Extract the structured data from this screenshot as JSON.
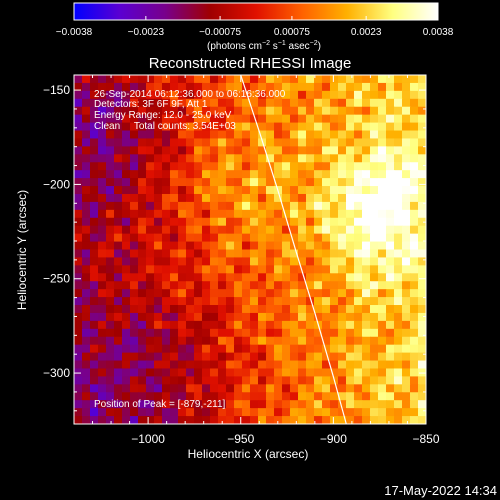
{
  "chart_data": {
    "type": "heatmap",
    "title": "Reconstructed RHESSI Image",
    "xlabel": "Heliocentric X (arcsec)",
    "ylabel": "Heliocentric Y (arcsec)",
    "xlim": [
      -1040,
      -850
    ],
    "ylim": [
      -327,
      -142
    ],
    "x_ticks": [
      -1000,
      -950,
      -900,
      -850
    ],
    "x_tick_labels": [
      "−1000",
      "−950",
      "−900",
      "−850"
    ],
    "y_ticks": [
      -150,
      -200,
      -250,
      -300
    ],
    "y_tick_labels": [
      "−150",
      "−200",
      "−250",
      "−300"
    ],
    "colorbar": {
      "min": -0.0038,
      "max": 0.0038,
      "ticks": [
        -0.0038,
        -0.0023,
        -0.00075,
        0.00075,
        0.0023,
        0.0038
      ],
      "tick_labels": [
        "−0.0038",
        "−0.0023",
        "−0.00075",
        "0.00075",
        "0.0023",
        "0.0038"
      ],
      "units_main": "(photons cm",
      "units_sup1": "−2",
      "units_mid": " s",
      "units_sup2": "−1",
      "units_mid2": " asec",
      "units_sup3": "−2",
      "units_end": ")",
      "colormap": [
        "#0000ff",
        "#5a00d2",
        "#78008c",
        "#a00000",
        "#e01000",
        "#ff6000",
        "#ffb000",
        "#ffff80",
        "#ffffff"
      ]
    },
    "info_lines": [
      "26-Sep-2014 06:12:36.000 to 06:16:36.000",
      "Detectors: 3F 6F 9F, Att 1",
      "Energy Range: 12.0 - 25.0 keV",
      "Clean     Total counts: 3.54E+03"
    ],
    "peak_label": "Position of Peak = [-879,-211]",
    "peak": [
      -879,
      -211
    ],
    "limb_curve": {
      "x": [
        -950,
        -940,
        -930,
        -920,
        -910,
        -900,
        -893
      ],
      "y": [
        -142,
        -172,
        -203,
        -236,
        -268,
        -302,
        -327
      ],
      "color": "#ffffff"
    },
    "image_description_levels": {
      "note_colors_only": true
    }
  },
  "timestamp": "17-May-2022 14:34"
}
